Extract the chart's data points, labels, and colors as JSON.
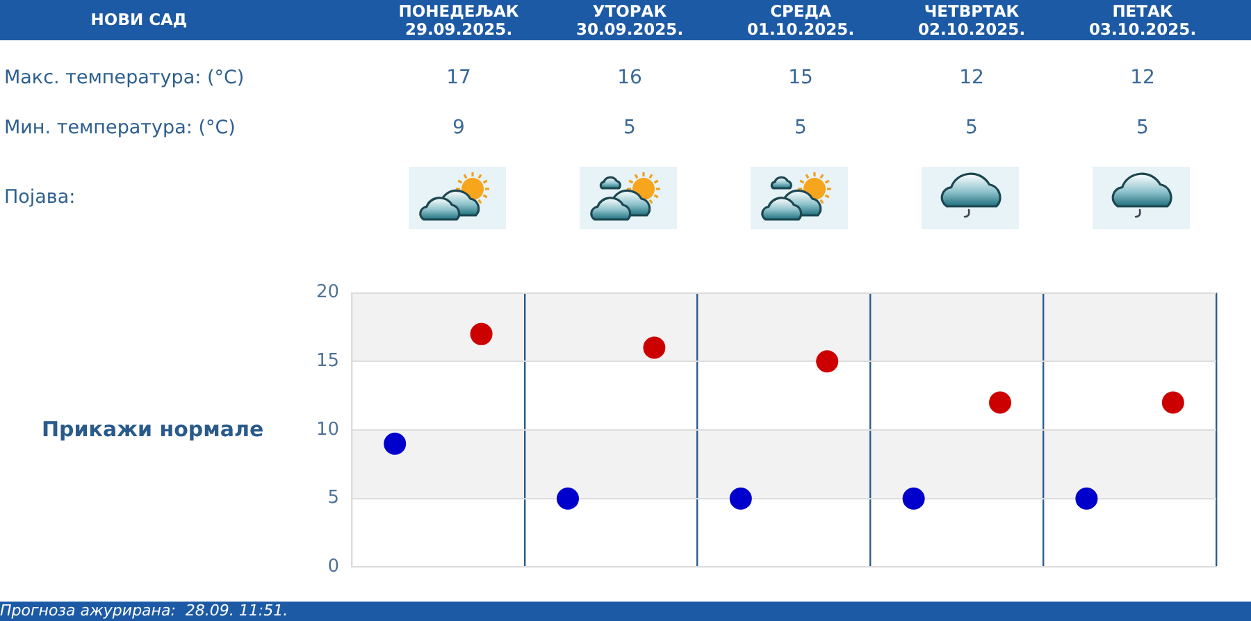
{
  "chart_data": [
    {
      "type": "other",
      "title": "НОВИ САД",
      "categories": [
        "ПОНЕДЕЉАК\n29.09.2025.",
        "УТОРАК\n30.09.2025.",
        "СРЕДА\n01.10.2025.",
        "ЧЕТВРТАК\n02.10.2025.",
        "ПЕТАК\n03.10.2025."
      ],
      "series": [
        {
          "name": "Макс. температура: (°C)",
          "values": [
            17,
            16,
            15,
            12,
            12
          ]
        },
        {
          "name": "Мин. температура: (°C)",
          "values": [
            9,
            5,
            5,
            5,
            5
          ]
        }
      ],
      "data_labels": true,
      "annotations": [
        "Појава:"
      ]
    },
    {
      "type": "scatter",
      "categories": [
        null,
        null,
        null,
        null,
        null
      ],
      "series": [
        {
          "color": "#0000cc",
          "values": [
            9,
            5,
            5,
            5,
            5
          ]
        },
        {
          "color": "#cc0000",
          "values": [
            17,
            16,
            15,
            12,
            12
          ]
        }
      ],
      "ylim": [
        0,
        20
      ],
      "yticks": [
        0,
        5,
        10,
        15,
        20
      ],
      "grid": true,
      "tick_labels": "y",
      "marker": "circle",
      "annotations": [
        "Прикажи нормале",
        "Прогноза ажурирана:  28.09. 11:51."
      ]
    }
  ]
}
